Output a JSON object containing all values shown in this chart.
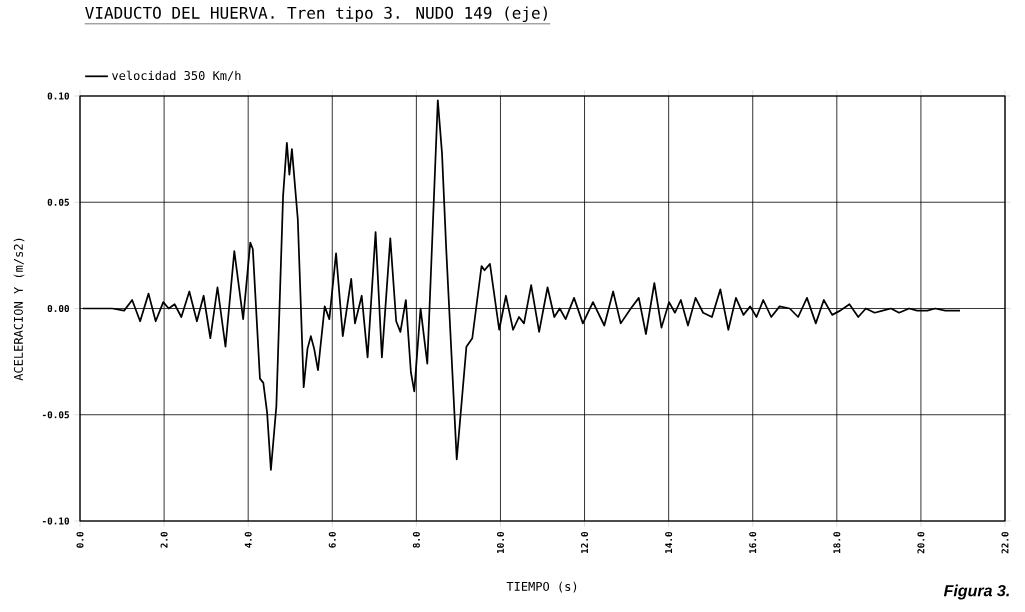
{
  "chart_data": {
    "type": "line",
    "title": "VIADUCTO DEL HUERVA. Tren tipo 3. NUDO 149 (eje)",
    "xlabel": "TIEMPO (s)",
    "ylabel": "ACELERACION Y (m/s2)",
    "annotations": [
      "Figura 3."
    ],
    "x": [
      0.07,
      0.77,
      1.05,
      1.24,
      1.43,
      1.63,
      1.8,
      1.98,
      2.11,
      2.25,
      2.41,
      2.6,
      2.78,
      2.94,
      3.1,
      3.27,
      3.46,
      3.67,
      3.88,
      4.05,
      4.11,
      4.28,
      4.36,
      4.45,
      4.54,
      4.67,
      4.83,
      4.92,
      4.98,
      5.04,
      5.18,
      5.32,
      5.41,
      5.49,
      5.57,
      5.66,
      5.82,
      5.93,
      6.09,
      6.25,
      6.45,
      6.54,
      6.7,
      6.84,
      7.03,
      7.18,
      7.38,
      7.52,
      7.62,
      7.75,
      7.87,
      7.95,
      8.1,
      8.26,
      8.51,
      8.61,
      8.71,
      8.96,
      9.19,
      9.33,
      9.55,
      9.62,
      9.75,
      9.97,
      10.13,
      10.3,
      10.44,
      10.56,
      10.73,
      10.92,
      11.12,
      11.28,
      11.41,
      11.55,
      11.75,
      11.96,
      12.2,
      12.47,
      12.68,
      12.86,
      13.1,
      13.29,
      13.46,
      13.66,
      13.83,
      14.01,
      14.15,
      14.29,
      14.46,
      14.64,
      14.82,
      15.03,
      15.23,
      15.42,
      15.6,
      15.78,
      15.94,
      16.09,
      16.25,
      16.44,
      16.64,
      16.88,
      17.08,
      17.29,
      17.5,
      17.69,
      17.89,
      18.08,
      18.3,
      18.51,
      18.69,
      18.9,
      19.09,
      19.29,
      19.48,
      19.72,
      19.91,
      20.15,
      20.34,
      20.58,
      20.93
    ],
    "series": [
      {
        "name": "velocidad 350 Km/h",
        "color": "#000000",
        "values": [
          0,
          0,
          -0.001,
          0.004,
          -0.006,
          0.007,
          -0.006,
          0.003,
          0,
          0.002,
          -0.004,
          0.008,
          -0.006,
          0.006,
          -0.014,
          0.01,
          -0.018,
          0.027,
          -0.005,
          0.031,
          0.028,
          -0.033,
          -0.035,
          -0.049,
          -0.076,
          -0.046,
          0.053,
          0.078,
          0.063,
          0.075,
          0.042,
          -0.037,
          -0.019,
          -0.013,
          -0.019,
          -0.029,
          0.001,
          -0.005,
          0.026,
          -0.013,
          0.014,
          -0.007,
          0.006,
          -0.023,
          0.036,
          -0.023,
          0.033,
          -0.006,
          -0.011,
          0.004,
          -0.03,
          -0.039,
          0,
          -0.026,
          0.098,
          0.073,
          0.028,
          -0.071,
          -0.018,
          -0.014,
          0.02,
          0.018,
          0.021,
          -0.01,
          0.006,
          -0.01,
          -0.004,
          -0.007,
          0.011,
          -0.011,
          0.01,
          -0.004,
          0,
          -0.005,
          0.005,
          -0.007,
          0.003,
          -0.008,
          0.008,
          -0.007,
          0,
          0.005,
          -0.012,
          0.012,
          -0.009,
          0.003,
          -0.002,
          0.004,
          -0.008,
          0.005,
          -0.002,
          -0.004,
          0.009,
          -0.01,
          0.005,
          -0.003,
          0.001,
          -0.004,
          0.004,
          -0.004,
          0.001,
          0,
          -0.004,
          0.005,
          -0.007,
          0.004,
          -0.003,
          -0.001,
          0.002,
          -0.004,
          0,
          -0.002,
          -0.001,
          0,
          -0.002,
          0,
          -0.001,
          -0.001,
          0,
          -0.001,
          -0.001
        ]
      }
    ],
    "xlim": [
      0,
      22
    ],
    "ylim": [
      -0.1,
      0.1
    ],
    "xticks": [
      {
        "value": 0,
        "label": "0.0"
      },
      {
        "value": 2,
        "label": "2.0"
      },
      {
        "value": 4,
        "label": "4.0"
      },
      {
        "value": 6,
        "label": "6.0"
      },
      {
        "value": 8,
        "label": "8.0"
      },
      {
        "value": 10,
        "label": "10.0"
      },
      {
        "value": 12,
        "label": "12.0"
      },
      {
        "value": 14,
        "label": "14.0"
      },
      {
        "value": 16,
        "label": "16.0"
      },
      {
        "value": 18,
        "label": "18.0"
      },
      {
        "value": 20,
        "label": "20.0"
      },
      {
        "value": 22,
        "label": "22.0"
      }
    ],
    "yticks": [
      {
        "value": -0.1,
        "label": "-0.10"
      },
      {
        "value": -0.05,
        "label": "-0.05"
      },
      {
        "value": 0,
        "label": "0.00"
      },
      {
        "value": 0.05,
        "label": "0.05"
      },
      {
        "value": 0.1,
        "label": "0.10"
      }
    ],
    "grid": true,
    "legend": "top left",
    "marker": "none",
    "line_style": "solid"
  }
}
